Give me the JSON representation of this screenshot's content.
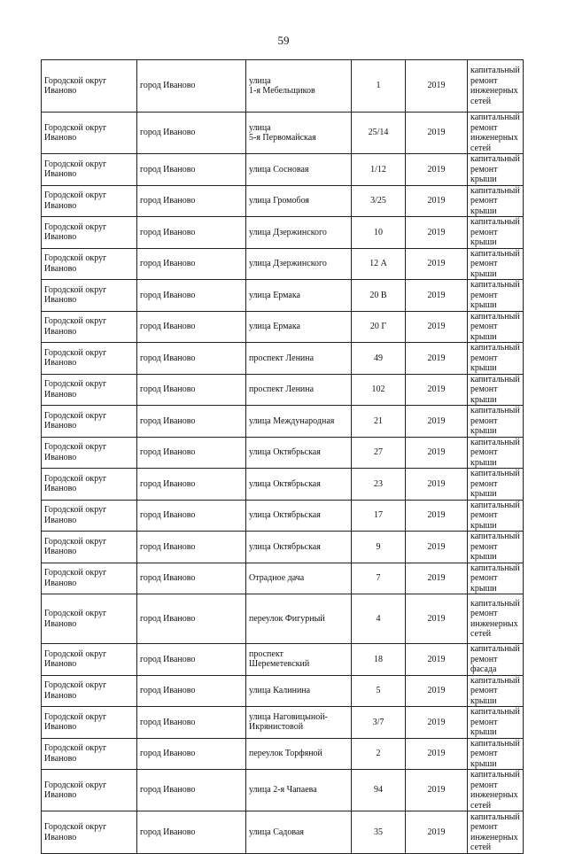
{
  "page_number": "59",
  "rows": [
    {
      "district": "Городской округ\nИваново",
      "city": "город Иваново",
      "street": "улица\n1-я Мебельщиков",
      "house": "1",
      "year": "2019",
      "work": "капитальный\nремонт\nинженерных\nсетей"
    },
    {
      "district": "Городской округ\nИваново",
      "city": "город Иваново",
      "street": "улица\n5-я Первомайская",
      "house": "25/14",
      "year": "2019",
      "work": "капитальный\nремонт\nинженерных\nсетей"
    },
    {
      "district": "Городской округ\nИваново",
      "city": "город Иваново",
      "street": "улица Сосновая",
      "house": "1/12",
      "year": "2019",
      "work": "капитальный\nремонт крыши"
    },
    {
      "district": "Городской округ\nИваново",
      "city": "город Иваново",
      "street": "улица Громобоя",
      "house": "3/25",
      "year": "2019",
      "work": "капитальный\nремонт крыши"
    },
    {
      "district": "Городской округ\nИваново",
      "city": "город Иваново",
      "street": "улица Дзержинского",
      "house": "10",
      "year": "2019",
      "work": "капитальный\nремонт крыши"
    },
    {
      "district": "Городской округ\nИваново",
      "city": "город Иваново",
      "street": "улица Дзержинского",
      "house": "12 А",
      "year": "2019",
      "work": "капитальный\nремонт крыши"
    },
    {
      "district": "Городской округ\nИваново",
      "city": "город Иваново",
      "street": "улица Ермака",
      "house": "20 В",
      "year": "2019",
      "work": "капитальный\nремонт крыши"
    },
    {
      "district": "Городской округ\nИваново",
      "city": "город Иваново",
      "street": "улица Ермака",
      "house": "20 Г",
      "year": "2019",
      "work": "капитальный\nремонт крыши"
    },
    {
      "district": "Городской округ\nИваново",
      "city": "город Иваново",
      "street": "проспект Ленина",
      "house": "49",
      "year": "2019",
      "work": "капитальный\nремонт крыши"
    },
    {
      "district": "Городской округ\nИваново",
      "city": "город Иваново",
      "street": "проспект Ленина",
      "house": "102",
      "year": "2019",
      "work": "капитальный\nремонт крыши"
    },
    {
      "district": "Городской округ\nИваново",
      "city": "город Иваново",
      "street": "улица Международная",
      "house": "21",
      "year": "2019",
      "work": "капитальный\nремонт крыши"
    },
    {
      "district": "Городской округ\nИваново",
      "city": "город Иваново",
      "street": "улица Октябрьская",
      "house": "27",
      "year": "2019",
      "work": "капитальный\nремонт крыши"
    },
    {
      "district": "Городской округ\nИваново",
      "city": "город Иваново",
      "street": "улица Октябрьская",
      "house": "23",
      "year": "2019",
      "work": "капитальный\nремонт крыши"
    },
    {
      "district": "Городской округ\nИваново",
      "city": "город Иваново",
      "street": "улица Октябрьская",
      "house": "17",
      "year": "2019",
      "work": "капитальный\nремонт крыши"
    },
    {
      "district": "Городской округ\nИваново",
      "city": "город Иваново",
      "street": "улица Октябрьская",
      "house": "9",
      "year": "2019",
      "work": "капитальный\nремонт крыши"
    },
    {
      "district": "Городской округ\nИваново",
      "city": "город Иваново",
      "street": "Отрадное дача",
      "house": "7",
      "year": "2019",
      "work": "капитальный\nремонт крыши"
    },
    {
      "district": "Городской округ\nИваново",
      "city": "город Иваново",
      "street": "переулок Фигурный",
      "house": "4",
      "year": "2019",
      "work": "капитальный\nремонт\nинженерных\nсетей"
    },
    {
      "district": "Городской округ\nИваново",
      "city": "город Иваново",
      "street": "проспект\nШереметевский",
      "house": "18",
      "year": "2019",
      "work": "капитальный\nремонт фасада"
    },
    {
      "district": "Городской округ\nИваново",
      "city": "город Иваново",
      "street": "улица Калинина",
      "house": "5",
      "year": "2019",
      "work": "капитальный\nремонт крыши"
    },
    {
      "district": "Городской округ\nИваново",
      "city": "город Иваново",
      "street": "улица Наговицыной-\nИкрянистовой",
      "house": "3/7",
      "year": "2019",
      "work": "капитальный\nремонт крыши"
    },
    {
      "district": "Городской округ\nИваново",
      "city": "город Иваново",
      "street": "переулок Торфяной",
      "house": "2",
      "year": "2019",
      "work": "капитальный\nремонт крыши"
    },
    {
      "district": "Городской округ\nИваново",
      "city": "город Иваново",
      "street": "улица 2-я Чапаева",
      "house": "94",
      "year": "2019",
      "work": "капитальный\nремонт\nинженерных\nсетей"
    },
    {
      "district": "Городской округ\nИваново",
      "city": "город Иваново",
      "street": "улица Садовая",
      "house": "35",
      "year": "2019",
      "work": "капитальный\nремонт\nинженерных\nсетей"
    }
  ]
}
